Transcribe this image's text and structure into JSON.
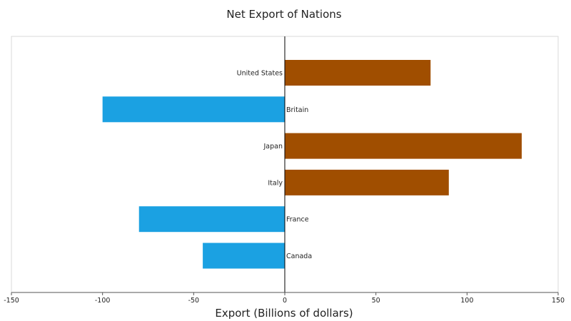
{
  "chart_data": {
    "type": "bar",
    "orientation": "horizontal",
    "title": "Net Export of Nations",
    "xlabel": "Export (Billions of dollars)",
    "ylabel": "",
    "categories": [
      "United States",
      "Britain",
      "Japan",
      "Italy",
      "France",
      "Canada"
    ],
    "values": [
      80,
      -100,
      130,
      90,
      -80,
      -45
    ],
    "xlim": [
      -150,
      150
    ],
    "xticks": [
      -150,
      -100,
      -50,
      0,
      50,
      100,
      150
    ],
    "grid": false,
    "legend": "none",
    "colors": {
      "positive": "#A04E00",
      "negative": "#1BA1E2"
    }
  }
}
